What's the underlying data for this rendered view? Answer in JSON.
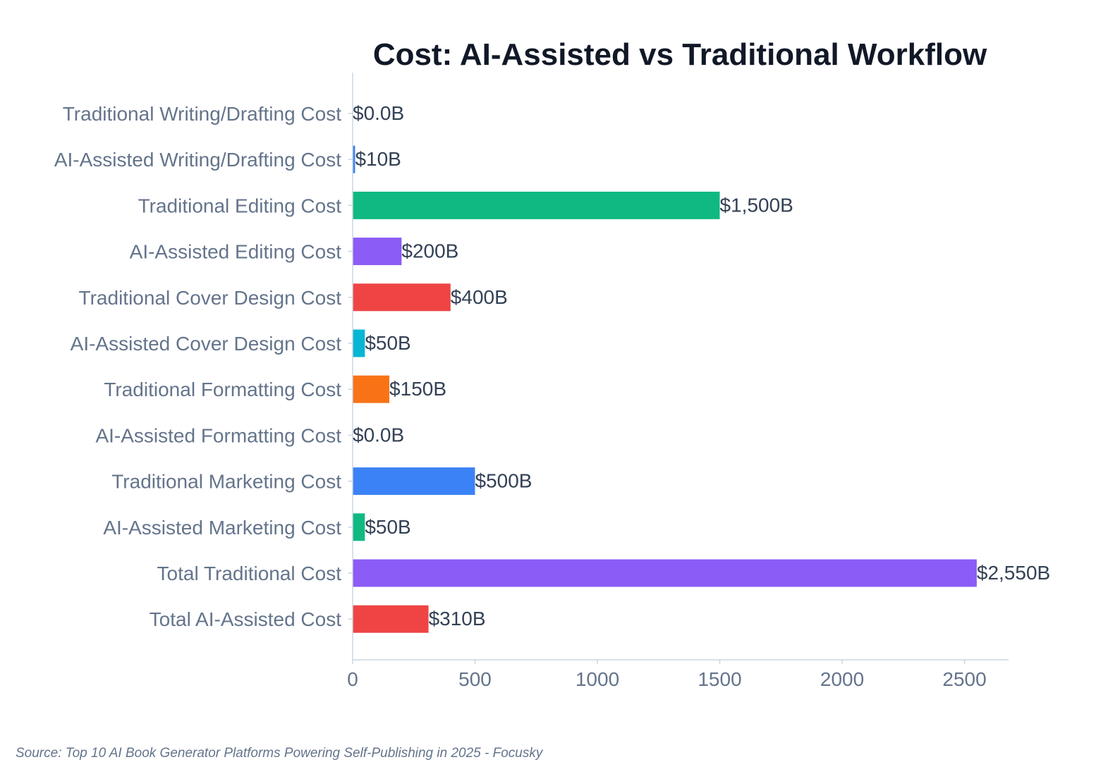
{
  "chart_data": {
    "type": "bar",
    "orientation": "horizontal",
    "title": "Cost: AI-Assisted vs Traditional Workflow",
    "xlabel": "",
    "ylabel": "",
    "xlim": [
      0,
      2680
    ],
    "xticks": [
      0,
      500,
      1000,
      1500,
      2000,
      2500
    ],
    "xtick_labels": [
      "0",
      "500",
      "1000",
      "1500",
      "2000",
      "2500"
    ],
    "grid": false,
    "legend": "none",
    "categories": [
      "Traditional Writing/Drafting Cost",
      "AI-Assisted Writing/Drafting Cost",
      "Traditional Editing Cost",
      "AI-Assisted Editing Cost",
      "Traditional Cover Design Cost",
      "AI-Assisted Cover Design Cost",
      "Traditional Formatting Cost",
      "AI-Assisted Formatting Cost",
      "Traditional Marketing Cost",
      "AI-Assisted Marketing Cost",
      "Total Traditional Cost",
      "Total AI-Assisted Cost"
    ],
    "values": [
      0,
      10,
      1500,
      200,
      400,
      50,
      150,
      0,
      500,
      50,
      2550,
      310
    ],
    "value_labels": [
      "$0.0B",
      "$10B",
      "$1,500B",
      "$200B",
      "$400B",
      "$50B",
      "$150B",
      "$0.0B",
      "$500B",
      "$50B",
      "$2,550B",
      "$310B"
    ],
    "colors": [
      "#8b5cf6",
      "#3b82f6",
      "#10b981",
      "#8b5cf6",
      "#ef4444",
      "#06b6d4",
      "#f97316",
      "#8b5cf6",
      "#3b82f6",
      "#10b981",
      "#8b5cf6",
      "#ef4444"
    ],
    "axis_color": "#cbd5e1"
  },
  "source": "Source: Top 10 AI Book Generator Platforms Powering Self-Publishing in 2025 - Focusky"
}
